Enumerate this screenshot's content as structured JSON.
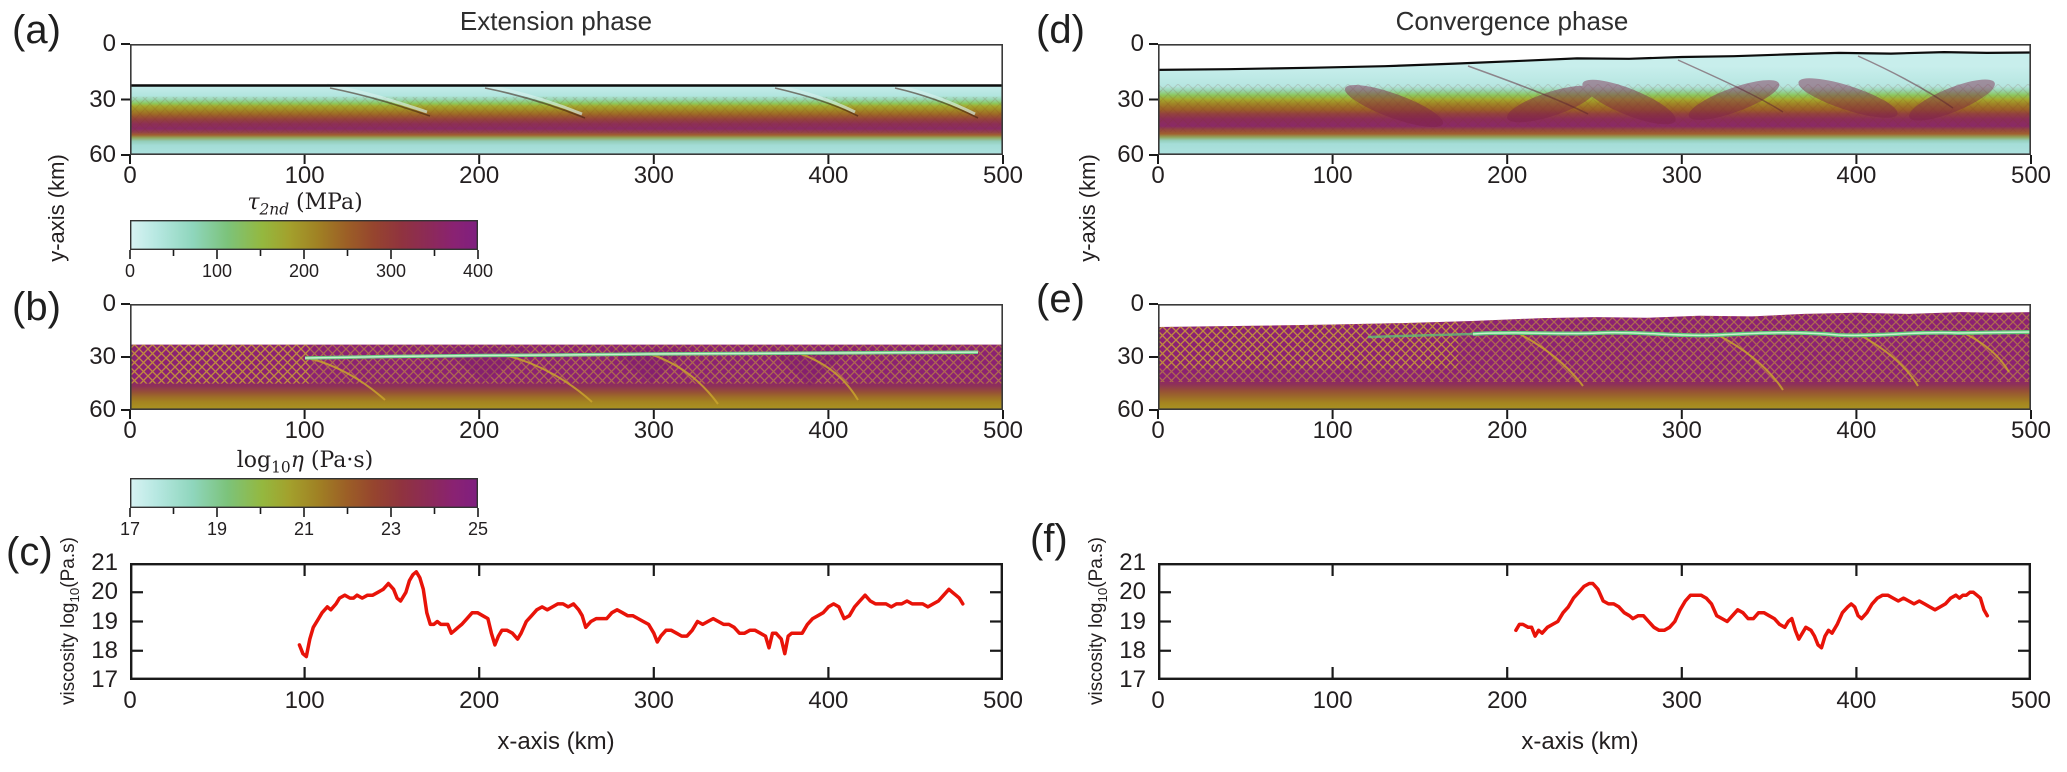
{
  "figure": {
    "titles": {
      "left": "Extension phase",
      "right": "Convergence phase"
    },
    "panel_labels": {
      "a": "(a)",
      "b": "(b)",
      "c": "(c)",
      "d": "(d)",
      "e": "(e)",
      "f": "(f)"
    },
    "axes": {
      "depth_label": "y-axis (km)",
      "x_label": "x-axis (km)",
      "viscosity_pre": "viscosity log",
      "viscosity_sub": "10",
      "viscosity_post": "(Pa.s)",
      "depth_ticks": [
        0,
        30,
        60
      ],
      "x_ticks": [
        0,
        100,
        200,
        300,
        400,
        500
      ],
      "viscosity_ticks": [
        21,
        20,
        19,
        18,
        17
      ]
    },
    "colorbars": {
      "stress": {
        "symbol": "τ",
        "sub": "2nd",
        "unit": " (MPa)",
        "ticks": [
          0,
          100,
          200,
          300,
          400
        ],
        "minor_step": 50,
        "range": [
          0,
          400
        ]
      },
      "viscosity": {
        "pre": "log",
        "sub": "10",
        "symbol": "η",
        "unit": " (Pa·s)",
        "ticks": [
          17,
          19,
          21,
          23,
          25
        ],
        "minor_step": 1,
        "range": [
          17,
          25
        ]
      }
    },
    "colors": {
      "profile_line": "#e81309",
      "colormap": [
        "#d8f3f4",
        "#b5e7e0",
        "#8fd6bd",
        "#7cc37b",
        "#94b83f",
        "#a3a02c",
        "#a08124",
        "#9c6026",
        "#96452e",
        "#90333f",
        "#8c2a58",
        "#8a2272",
        "#7f1f80"
      ]
    }
  },
  "chart_data": [
    {
      "panel": "a",
      "type": "heatmap",
      "phase": "Extension phase",
      "quantity": "second invariant of deviatoric stress tau_2nd",
      "unit": "MPa",
      "x_range_km": [
        0,
        500
      ],
      "depth_range_km": [
        0,
        60
      ],
      "colorbar": "stress",
      "description": "Flat surface (black sticky-air interface) at ~23 km model depth; low-stress cyan upper crust, high-stress olive-brown-magenta band between ~30 and 47 km, cyan mantle below; conjugate shear bands dip basinward near x = 115, 210, 370 and 440 km."
    },
    {
      "panel": "b",
      "type": "heatmap",
      "phase": "Extension phase",
      "quantity": "viscosity log10(eta)",
      "unit": "Pa·s",
      "x_range_km": [
        0,
        500
      ],
      "depth_range_km": [
        0,
        60
      ],
      "colorbar": "viscosity",
      "description": "High-viscosity magenta crust from ~23 to ~45 km crossed by conjugate yellow-olive shear bands; a weak light-green sub-horizontal shear zone runs from x ≈ 100 km to 480 km at ~28-30 km depth with yellow splays dipping to the right; viscosity grades to olive-yellow toward 60 km."
    },
    {
      "panel": "c",
      "type": "line",
      "phase": "Extension phase",
      "x_label": "x-axis (km)",
      "y_label": "viscosity log10(Pa.s)",
      "x_range": [
        0,
        500
      ],
      "y_range": [
        17,
        21
      ],
      "x_ticks": [
        0,
        100,
        200,
        300,
        400,
        500
      ],
      "y_ticks": [
        17,
        18,
        19,
        20,
        21
      ],
      "series_name": "shear-zone viscosity profile",
      "series_color": "#e81309",
      "points": [
        [
          97,
          18.2
        ],
        [
          99,
          17.9
        ],
        [
          101,
          17.8
        ],
        [
          103,
          18.4
        ],
        [
          105,
          18.8
        ],
        [
          108,
          19.1
        ],
        [
          110,
          19.3
        ],
        [
          113,
          19.5
        ],
        [
          115,
          19.4
        ],
        [
          118,
          19.6
        ],
        [
          120,
          19.8
        ],
        [
          123,
          19.9
        ],
        [
          126,
          19.8
        ],
        [
          128,
          19.8
        ],
        [
          130,
          19.9
        ],
        [
          133,
          19.8
        ],
        [
          136,
          19.9
        ],
        [
          139,
          19.9
        ],
        [
          142,
          20.0
        ],
        [
          145,
          20.1
        ],
        [
          148,
          20.3
        ],
        [
          151,
          20.1
        ],
        [
          153,
          19.8
        ],
        [
          155,
          19.7
        ],
        [
          158,
          20.0
        ],
        [
          160,
          20.4
        ],
        [
          162,
          20.6
        ],
        [
          164,
          20.7
        ],
        [
          166,
          20.5
        ],
        [
          168,
          20.1
        ],
        [
          170,
          19.3
        ],
        [
          172,
          18.9
        ],
        [
          174,
          18.9
        ],
        [
          176,
          19.0
        ],
        [
          178,
          18.9
        ],
        [
          180,
          18.9
        ],
        [
          182,
          18.9
        ],
        [
          184,
          18.6
        ],
        [
          186,
          18.7
        ],
        [
          188,
          18.8
        ],
        [
          190,
          18.9
        ],
        [
          193,
          19.1
        ],
        [
          196,
          19.3
        ],
        [
          199,
          19.3
        ],
        [
          202,
          19.2
        ],
        [
          205,
          19.1
        ],
        [
          207,
          18.6
        ],
        [
          209,
          18.2
        ],
        [
          211,
          18.5
        ],
        [
          213,
          18.7
        ],
        [
          216,
          18.7
        ],
        [
          219,
          18.6
        ],
        [
          222,
          18.4
        ],
        [
          224,
          18.6
        ],
        [
          227,
          19.0
        ],
        [
          230,
          19.2
        ],
        [
          233,
          19.4
        ],
        [
          236,
          19.5
        ],
        [
          239,
          19.4
        ],
        [
          242,
          19.5
        ],
        [
          245,
          19.6
        ],
        [
          248,
          19.6
        ],
        [
          251,
          19.5
        ],
        [
          254,
          19.6
        ],
        [
          257,
          19.4
        ],
        [
          259,
          19.2
        ],
        [
          261,
          18.8
        ],
        [
          264,
          19.0
        ],
        [
          267,
          19.1
        ],
        [
          270,
          19.1
        ],
        [
          273,
          19.1
        ],
        [
          276,
          19.3
        ],
        [
          279,
          19.4
        ],
        [
          282,
          19.3
        ],
        [
          285,
          19.2
        ],
        [
          288,
          19.2
        ],
        [
          291,
          19.1
        ],
        [
          294,
          19.0
        ],
        [
          297,
          18.9
        ],
        [
          300,
          18.6
        ],
        [
          302,
          18.3
        ],
        [
          304,
          18.5
        ],
        [
          307,
          18.7
        ],
        [
          310,
          18.7
        ],
        [
          313,
          18.6
        ],
        [
          316,
          18.5
        ],
        [
          319,
          18.5
        ],
        [
          322,
          18.7
        ],
        [
          325,
          19.0
        ],
        [
          328,
          18.9
        ],
        [
          331,
          19.0
        ],
        [
          334,
          19.1
        ],
        [
          337,
          19.0
        ],
        [
          340,
          18.9
        ],
        [
          343,
          18.9
        ],
        [
          346,
          18.8
        ],
        [
          349,
          18.6
        ],
        [
          352,
          18.6
        ],
        [
          355,
          18.7
        ],
        [
          358,
          18.7
        ],
        [
          361,
          18.6
        ],
        [
          364,
          18.5
        ],
        [
          366,
          18.1
        ],
        [
          368,
          18.6
        ],
        [
          370,
          18.6
        ],
        [
          373,
          18.4
        ],
        [
          375,
          17.9
        ],
        [
          377,
          18.5
        ],
        [
          379,
          18.6
        ],
        [
          382,
          18.6
        ],
        [
          385,
          18.6
        ],
        [
          388,
          18.9
        ],
        [
          391,
          19.1
        ],
        [
          394,
          19.2
        ],
        [
          397,
          19.3
        ],
        [
          400,
          19.5
        ],
        [
          403,
          19.6
        ],
        [
          406,
          19.5
        ],
        [
          409,
          19.1
        ],
        [
          412,
          19.2
        ],
        [
          415,
          19.5
        ],
        [
          418,
          19.7
        ],
        [
          421,
          19.9
        ],
        [
          424,
          19.7
        ],
        [
          427,
          19.6
        ],
        [
          430,
          19.6
        ],
        [
          433,
          19.6
        ],
        [
          436,
          19.5
        ],
        [
          439,
          19.6
        ],
        [
          442,
          19.6
        ],
        [
          445,
          19.7
        ],
        [
          448,
          19.6
        ],
        [
          451,
          19.6
        ],
        [
          454,
          19.6
        ],
        [
          457,
          19.5
        ],
        [
          460,
          19.6
        ],
        [
          463,
          19.7
        ],
        [
          466,
          19.9
        ],
        [
          469,
          20.1
        ],
        [
          471,
          20.0
        ],
        [
          473,
          19.9
        ],
        [
          475,
          19.8
        ],
        [
          477,
          19.6
        ]
      ]
    },
    {
      "panel": "d",
      "type": "heatmap",
      "phase": "Convergence phase",
      "quantity": "second invariant of deviatoric stress tau_2nd",
      "unit": "MPa",
      "x_range_km": [
        0,
        500
      ],
      "depth_range_km": [
        0,
        60
      ],
      "colorbar": "stress",
      "description": "Topographic surface rises from ~14 km depth at x = 0 toward ~4-5 km on the right; thickened high-stress olive-brown-magenta band (~25-47 km) deformed by multiple thrust wedges near x = 135, 225, 270, 330, 395 and 455 km; cyan low-stress regions above and below."
    },
    {
      "panel": "e",
      "type": "heatmap",
      "phase": "Convergence phase",
      "quantity": "viscosity log10(eta)",
      "unit": "Pa·s",
      "x_range_km": [
        0,
        500
      ],
      "depth_range_km": [
        0,
        60
      ],
      "colorbar": "viscosity",
      "description": "High-viscosity magenta crust beneath an uplifted wavy surface; dense conjugate yellow-olive shear bands; an anastomosing light-green weak shear zone runs along ~15-19 km depth from x ≈ 120 km to 500 km with yellow thrust splays; viscosity grades to olive-yellow near 60 km."
    },
    {
      "panel": "f",
      "type": "line",
      "phase": "Convergence phase",
      "x_label": "x-axis (km)",
      "y_label": "viscosity log10(Pa.s)",
      "x_range": [
        0,
        500
      ],
      "y_range": [
        17,
        21
      ],
      "x_ticks": [
        0,
        100,
        200,
        300,
        400,
        500
      ],
      "y_ticks": [
        17,
        18,
        19,
        20,
        21
      ],
      "series_name": "shear-zone viscosity profile",
      "series_color": "#e81309",
      "points": [
        [
          205,
          18.7
        ],
        [
          207,
          18.9
        ],
        [
          209,
          18.9
        ],
        [
          212,
          18.8
        ],
        [
          214,
          18.8
        ],
        [
          216,
          18.5
        ],
        [
          218,
          18.7
        ],
        [
          220,
          18.6
        ],
        [
          223,
          18.8
        ],
        [
          226,
          18.9
        ],
        [
          229,
          19.0
        ],
        [
          232,
          19.3
        ],
        [
          235,
          19.5
        ],
        [
          238,
          19.8
        ],
        [
          241,
          20.0
        ],
        [
          244,
          20.2
        ],
        [
          247,
          20.3
        ],
        [
          249,
          20.3
        ],
        [
          252,
          20.1
        ],
        [
          255,
          19.7
        ],
        [
          258,
          19.6
        ],
        [
          261,
          19.6
        ],
        [
          264,
          19.5
        ],
        [
          267,
          19.3
        ],
        [
          270,
          19.2
        ],
        [
          272,
          19.1
        ],
        [
          275,
          19.2
        ],
        [
          278,
          19.2
        ],
        [
          281,
          19.0
        ],
        [
          284,
          18.8
        ],
        [
          287,
          18.7
        ],
        [
          290,
          18.7
        ],
        [
          293,
          18.8
        ],
        [
          296,
          19.0
        ],
        [
          299,
          19.4
        ],
        [
          302,
          19.7
        ],
        [
          305,
          19.9
        ],
        [
          308,
          19.9
        ],
        [
          311,
          19.9
        ],
        [
          314,
          19.8
        ],
        [
          317,
          19.6
        ],
        [
          320,
          19.2
        ],
        [
          323,
          19.1
        ],
        [
          326,
          19.0
        ],
        [
          329,
          19.2
        ],
        [
          332,
          19.4
        ],
        [
          335,
          19.3
        ],
        [
          338,
          19.1
        ],
        [
          341,
          19.1
        ],
        [
          344,
          19.3
        ],
        [
          347,
          19.3
        ],
        [
          350,
          19.2
        ],
        [
          353,
          19.1
        ],
        [
          356,
          18.9
        ],
        [
          359,
          18.8
        ],
        [
          361,
          19.0
        ],
        [
          363,
          19.1
        ],
        [
          365,
          18.7
        ],
        [
          367,
          18.4
        ],
        [
          369,
          18.6
        ],
        [
          371,
          18.8
        ],
        [
          374,
          18.7
        ],
        [
          376,
          18.5
        ],
        [
          378,
          18.2
        ],
        [
          380,
          18.1
        ],
        [
          382,
          18.5
        ],
        [
          384,
          18.7
        ],
        [
          386,
          18.6
        ],
        [
          389,
          18.9
        ],
        [
          392,
          19.3
        ],
        [
          395,
          19.5
        ],
        [
          397,
          19.6
        ],
        [
          399,
          19.5
        ],
        [
          401,
          19.2
        ],
        [
          403,
          19.1
        ],
        [
          406,
          19.3
        ],
        [
          409,
          19.6
        ],
        [
          412,
          19.8
        ],
        [
          415,
          19.9
        ],
        [
          418,
          19.9
        ],
        [
          421,
          19.8
        ],
        [
          424,
          19.7
        ],
        [
          427,
          19.8
        ],
        [
          430,
          19.7
        ],
        [
          433,
          19.6
        ],
        [
          436,
          19.7
        ],
        [
          439,
          19.6
        ],
        [
          442,
          19.5
        ],
        [
          445,
          19.4
        ],
        [
          448,
          19.5
        ],
        [
          451,
          19.6
        ],
        [
          454,
          19.8
        ],
        [
          457,
          19.9
        ],
        [
          459,
          19.8
        ],
        [
          461,
          19.9
        ],
        [
          463,
          19.9
        ],
        [
          465,
          20.0
        ],
        [
          467,
          20.0
        ],
        [
          469,
          19.9
        ],
        [
          471,
          19.8
        ],
        [
          473,
          19.4
        ],
        [
          475,
          19.2
        ]
      ]
    }
  ]
}
